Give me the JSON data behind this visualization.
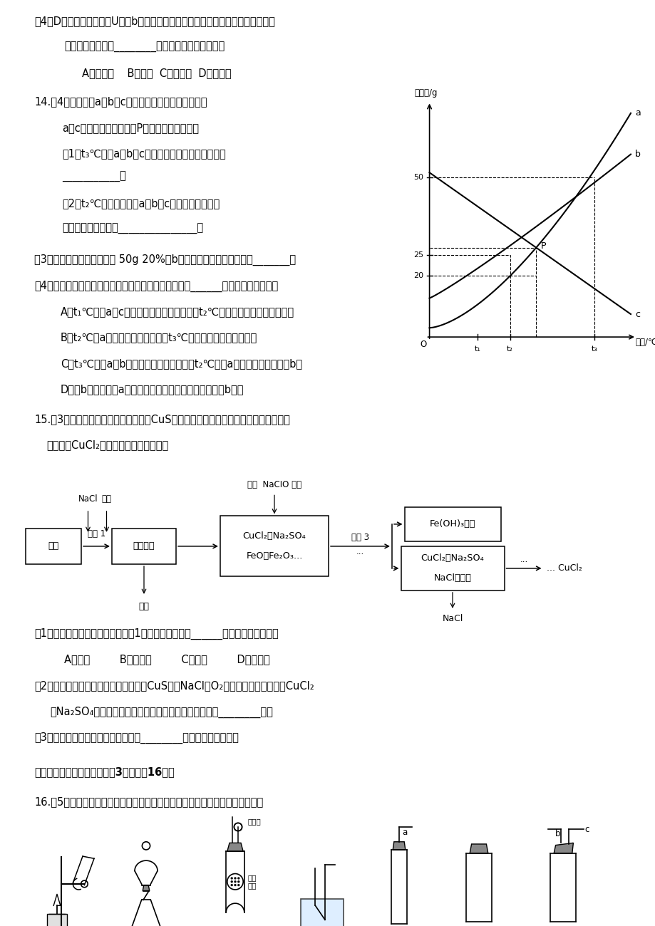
{
  "background_color": "#ffffff",
  "page_width": 9.2,
  "page_height": 13.0,
  "dpi": 100
}
